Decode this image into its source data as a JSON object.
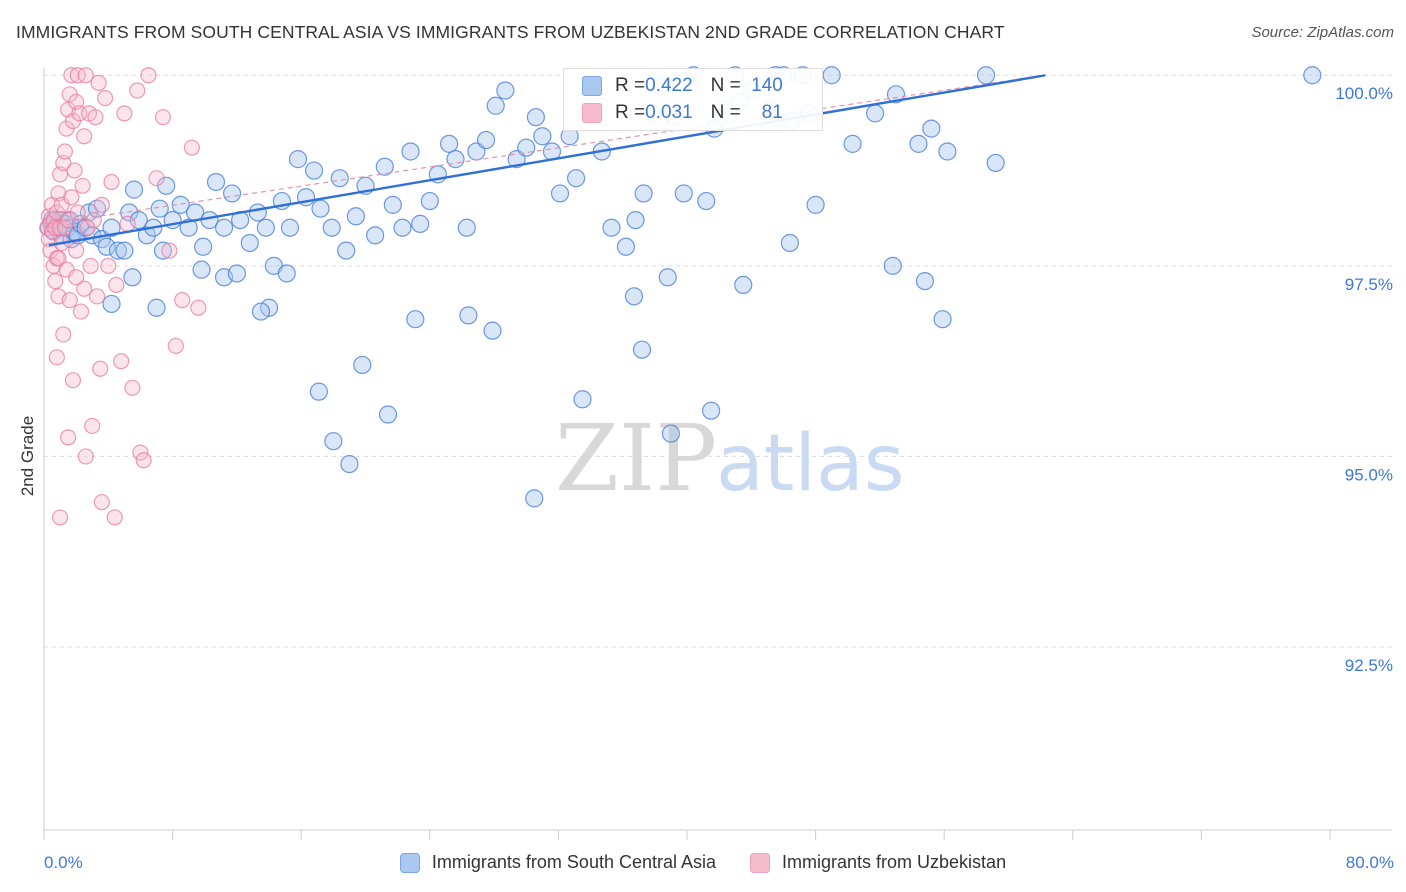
{
  "title": "IMMIGRANTS FROM SOUTH CENTRAL ASIA VS IMMIGRANTS FROM UZBEKISTAN 2ND GRADE CORRELATION CHART",
  "source": "Source: ZipAtlas.com",
  "watermark": {
    "zip": "ZIP",
    "atlas": "atlas"
  },
  "stats": [
    {
      "r_label": "R = ",
      "r": "0.422",
      "n_label": "N = ",
      "n": "140",
      "color": "#7aa6e8"
    },
    {
      "r_label": "R = ",
      "r": "0.031",
      "n_label": "N = ",
      "n": "81",
      "color": "#f0a0b8"
    }
  ],
  "chart_data": {
    "type": "scatter",
    "title": "IMMIGRANTS FROM SOUTH CENTRAL ASIA VS IMMIGRANTS FROM UZBEKISTAN 2ND GRADE CORRELATION CHART",
    "xlabel": "",
    "ylabel": "2nd Grade",
    "xlim": [
      0,
      80
    ],
    "ylim": [
      90.1,
      100.2
    ],
    "x_tick_labels": [
      "0.0%",
      "80.0%"
    ],
    "y_ticks": [
      92.5,
      95.0,
      97.5,
      100.0
    ],
    "y_tick_labels": [
      "92.5%",
      "95.0%",
      "97.5%",
      "100.0%"
    ],
    "grid": "horizontal dashed",
    "legend_position": "bottom",
    "series": [
      {
        "name": "Immigrants from South Central Asia",
        "color": "#3d78d8",
        "fill": "#aac8f0",
        "r": 0.422,
        "n": 140,
        "trend": {
          "x": [
            0.3,
            62.3
          ],
          "y": [
            97.77,
            100.0
          ]
        },
        "points": [
          [
            0.3,
            98.0
          ],
          [
            0.5,
            98.1
          ],
          [
            0.6,
            97.95
          ],
          [
            0.7,
            98.1
          ],
          [
            0.8,
            98.05
          ],
          [
            0.9,
            98.0
          ],
          [
            1.0,
            98.1
          ],
          [
            1.1,
            97.9
          ],
          [
            1.3,
            98.05
          ],
          [
            1.5,
            98.0
          ],
          [
            1.6,
            98.1
          ],
          [
            1.7,
            97.85
          ],
          [
            1.9,
            97.95
          ],
          [
            2.1,
            97.9
          ],
          [
            2.3,
            98.05
          ],
          [
            2.6,
            98.0
          ],
          [
            2.8,
            98.2
          ],
          [
            3.0,
            97.9
          ],
          [
            3.3,
            98.25
          ],
          [
            3.6,
            97.85
          ],
          [
            3.9,
            97.75
          ],
          [
            4.2,
            98.0
          ],
          [
            4.6,
            97.7
          ],
          [
            5.0,
            97.7
          ],
          [
            5.3,
            98.2
          ],
          [
            5.6,
            98.5
          ],
          [
            5.9,
            98.1
          ],
          [
            6.4,
            97.9
          ],
          [
            6.8,
            98.0
          ],
          [
            7.2,
            98.25
          ],
          [
            7.6,
            98.55
          ],
          [
            8.0,
            98.1
          ],
          [
            8.5,
            98.3
          ],
          [
            9.0,
            98.0
          ],
          [
            9.4,
            98.2
          ],
          [
            9.9,
            97.75
          ],
          [
            10.3,
            98.1
          ],
          [
            10.7,
            98.6
          ],
          [
            11.2,
            98.0
          ],
          [
            11.7,
            98.45
          ],
          [
            12.2,
            98.1
          ],
          [
            12.8,
            97.8
          ],
          [
            13.3,
            98.2
          ],
          [
            13.8,
            98.0
          ],
          [
            14.3,
            97.5
          ],
          [
            14.8,
            98.35
          ],
          [
            15.3,
            98.0
          ],
          [
            15.8,
            98.9
          ],
          [
            16.3,
            98.4
          ],
          [
            16.8,
            98.75
          ],
          [
            17.2,
            98.25
          ],
          [
            17.9,
            98.0
          ],
          [
            18.4,
            98.65
          ],
          [
            18.8,
            97.7
          ],
          [
            19.4,
            98.15
          ],
          [
            20.0,
            98.55
          ],
          [
            20.6,
            97.9
          ],
          [
            21.2,
            98.8
          ],
          [
            21.7,
            98.3
          ],
          [
            22.3,
            98.0
          ],
          [
            22.8,
            99.0
          ],
          [
            23.4,
            98.05
          ],
          [
            24.0,
            98.35
          ],
          [
            24.5,
            98.7
          ],
          [
            25.2,
            99.1
          ],
          [
            25.6,
            98.9
          ],
          [
            26.3,
            98.0
          ],
          [
            26.9,
            99.0
          ],
          [
            27.5,
            99.15
          ],
          [
            28.1,
            99.6
          ],
          [
            28.7,
            99.8
          ],
          [
            29.4,
            98.9
          ],
          [
            30.0,
            99.05
          ],
          [
            30.6,
            99.45
          ],
          [
            31.0,
            99.2
          ],
          [
            31.6,
            99.0
          ],
          [
            32.1,
            98.45
          ],
          [
            32.7,
            99.2
          ],
          [
            33.1,
            98.65
          ],
          [
            33.8,
            99.5
          ],
          [
            34.2,
            99.85
          ],
          [
            34.7,
            99.0
          ],
          [
            35.3,
            98.0
          ],
          [
            36.2,
            97.75
          ],
          [
            36.8,
            98.1
          ],
          [
            37.3,
            98.45
          ],
          [
            37.9,
            99.5
          ],
          [
            38.4,
            99.85
          ],
          [
            38.8,
            97.35
          ],
          [
            39.2,
            99.45
          ],
          [
            39.8,
            98.45
          ],
          [
            40.4,
            100.0
          ],
          [
            41.2,
            98.35
          ],
          [
            41.7,
            99.3
          ],
          [
            42.3,
            99.55
          ],
          [
            43.0,
            100.0
          ],
          [
            43.3,
            99.65
          ],
          [
            44.0,
            99.8
          ],
          [
            45.2,
            99.55
          ],
          [
            45.5,
            100.0
          ],
          [
            46.0,
            100.0
          ],
          [
            46.5,
            99.4
          ],
          [
            47.2,
            100.0
          ],
          [
            47.6,
            99.5
          ],
          [
            49.0,
            100.0
          ],
          [
            50.3,
            99.1
          ],
          [
            51.7,
            99.5
          ],
          [
            53.0,
            99.75
          ],
          [
            54.4,
            99.1
          ],
          [
            55.2,
            99.3
          ],
          [
            56.2,
            99.0
          ],
          [
            58.6,
            100.0
          ],
          [
            59.2,
            98.85
          ],
          [
            78.9,
            100.0
          ],
          [
            36.7,
            97.1
          ],
          [
            43.5,
            97.25
          ],
          [
            48.0,
            98.3
          ],
          [
            52.8,
            97.5
          ],
          [
            54.8,
            97.3
          ],
          [
            55.9,
            96.8
          ],
          [
            26.4,
            96.85
          ],
          [
            19.8,
            96.2
          ],
          [
            17.1,
            95.85
          ],
          [
            21.4,
            95.55
          ],
          [
            33.5,
            95.75
          ],
          [
            37.2,
            96.4
          ],
          [
            39.0,
            95.3
          ],
          [
            41.5,
            95.6
          ],
          [
            18.0,
            95.2
          ],
          [
            19.0,
            94.9
          ],
          [
            30.5,
            94.45
          ],
          [
            46.4,
            97.8
          ],
          [
            11.2,
            97.35
          ],
          [
            14.0,
            96.95
          ],
          [
            7.0,
            96.95
          ],
          [
            4.2,
            97.0
          ],
          [
            5.5,
            97.35
          ],
          [
            7.4,
            97.7
          ],
          [
            9.8,
            97.45
          ],
          [
            12.0,
            97.4
          ],
          [
            15.1,
            97.4
          ],
          [
            13.5,
            96.9
          ],
          [
            23.1,
            96.8
          ],
          [
            27.9,
            96.65
          ]
        ]
      },
      {
        "name": "Immigrants from Uzbekistan",
        "color": "#e87aa0",
        "fill": "#f5bccd",
        "r": 0.031,
        "n": 81,
        "trend": {
          "x": [
            0.2,
            62.3
          ],
          "y": [
            98.05,
            100.0
          ]
        },
        "points": [
          [
            0.2,
            98.0
          ],
          [
            0.3,
            98.15
          ],
          [
            0.3,
            97.85
          ],
          [
            0.4,
            98.05
          ],
          [
            0.4,
            97.7
          ],
          [
            0.5,
            97.95
          ],
          [
            0.5,
            98.3
          ],
          [
            0.6,
            98.1
          ],
          [
            0.6,
            97.5
          ],
          [
            0.7,
            98.0
          ],
          [
            0.7,
            97.3
          ],
          [
            0.8,
            98.2
          ],
          [
            0.8,
            97.6
          ],
          [
            0.9,
            98.45
          ],
          [
            0.9,
            97.1
          ],
          [
            1.0,
            98.0
          ],
          [
            1.0,
            98.7
          ],
          [
            1.1,
            98.3
          ],
          [
            1.1,
            97.8
          ],
          [
            1.2,
            98.85
          ],
          [
            1.2,
            96.6
          ],
          [
            1.3,
            99.0
          ],
          [
            1.3,
            98.0
          ],
          [
            1.4,
            99.3
          ],
          [
            1.4,
            97.45
          ],
          [
            1.5,
            99.55
          ],
          [
            1.5,
            98.1
          ],
          [
            1.6,
            99.75
          ],
          [
            1.6,
            97.05
          ],
          [
            1.7,
            100.0
          ],
          [
            1.7,
            98.4
          ],
          [
            1.8,
            99.4
          ],
          [
            1.8,
            96.0
          ],
          [
            1.9,
            98.75
          ],
          [
            2.0,
            99.65
          ],
          [
            2.0,
            97.7
          ],
          [
            2.1,
            100.0
          ],
          [
            2.1,
            98.2
          ],
          [
            2.2,
            99.5
          ],
          [
            2.3,
            96.9
          ],
          [
            2.4,
            98.55
          ],
          [
            2.5,
            99.2
          ],
          [
            2.5,
            97.2
          ],
          [
            2.6,
            100.0
          ],
          [
            2.7,
            98.0
          ],
          [
            2.8,
            99.5
          ],
          [
            2.9,
            97.5
          ],
          [
            3.0,
            95.4
          ],
          [
            3.1,
            98.1
          ],
          [
            3.2,
            99.45
          ],
          [
            3.3,
            97.1
          ],
          [
            3.4,
            99.9
          ],
          [
            3.5,
            96.15
          ],
          [
            3.6,
            98.3
          ],
          [
            3.8,
            99.7
          ],
          [
            4.0,
            97.5
          ],
          [
            4.2,
            98.6
          ],
          [
            4.5,
            97.25
          ],
          [
            4.8,
            96.25
          ],
          [
            5.0,
            99.5
          ],
          [
            5.2,
            98.05
          ],
          [
            5.5,
            95.9
          ],
          [
            5.8,
            99.8
          ],
          [
            6.0,
            95.05
          ],
          [
            6.5,
            100.0
          ],
          [
            7.0,
            98.65
          ],
          [
            7.4,
            99.45
          ],
          [
            7.8,
            97.7
          ],
          [
            8.2,
            96.45
          ],
          [
            8.6,
            97.05
          ],
          [
            9.2,
            99.05
          ],
          [
            9.6,
            96.95
          ],
          [
            1.0,
            94.2
          ],
          [
            2.6,
            95.0
          ],
          [
            3.6,
            94.4
          ],
          [
            4.4,
            94.2
          ],
          [
            6.2,
            94.95
          ],
          [
            1.5,
            95.25
          ],
          [
            0.8,
            96.3
          ],
          [
            2.0,
            97.35
          ],
          [
            0.9,
            97.6
          ]
        ]
      }
    ]
  },
  "legend": [
    {
      "label": "Immigrants from South Central Asia",
      "fill": "#aac8f0",
      "stroke": "#7aa6e8"
    },
    {
      "label": "Immigrants from Uzbekistan",
      "fill": "#f5bccd",
      "stroke": "#f0a0b8"
    }
  ]
}
